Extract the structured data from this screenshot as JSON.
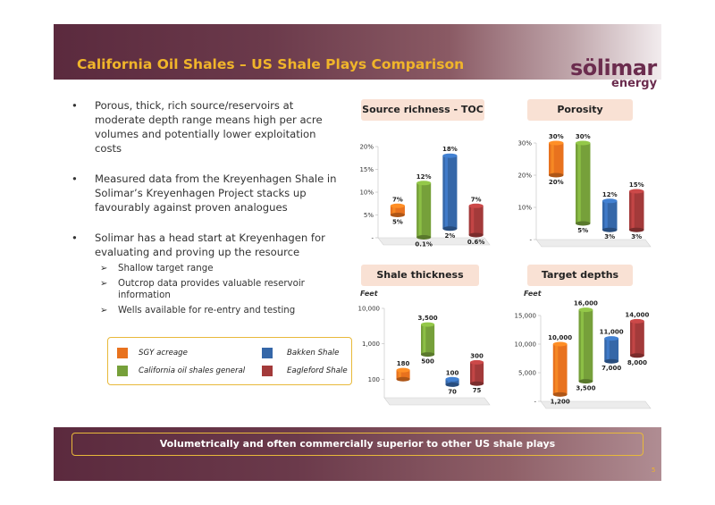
{
  "title": "California Oil Shales – US Shale Plays Comparison",
  "logo": {
    "word1": "sölimar",
    "word2": "energy"
  },
  "bullets": [
    {
      "text": "Porous, thick, rich source/reservoirs at moderate depth range means high per acre volumes and potentially lower exploitation costs"
    },
    {
      "text": "Measured data from the Kreyenhagen Shale in Solimar’s Kreyenhagen Project stacks up favourably against proven analogues"
    },
    {
      "text": "Solimar has a head start at Kreyenhagen for evaluating and proving up the resource",
      "subs": [
        "Shallow target range",
        "Outcrop data provides valuable reservoir information",
        "Wells available for re-entry and testing"
      ]
    }
  ],
  "legend": [
    {
      "label": "SGY acreage",
      "color": "#e8721e"
    },
    {
      "label": "Bakken Shale",
      "color": "#3567a8"
    },
    {
      "label": "California oil shales general",
      "color": "#76a03a"
    },
    {
      "label": "Eagleford Shale",
      "color": "#a33a3a"
    }
  ],
  "footer": "Volumetrically and often commercially superior to other US shale plays",
  "page_number": "5",
  "chart_data": [
    {
      "type": "bar",
      "title": "Source richness - TOC",
      "ylabel": "",
      "ticks": [
        "-",
        "5%",
        "10%",
        "15%",
        "20%"
      ],
      "ylim": [
        0,
        20
      ],
      "series": [
        {
          "name": "SGY acreage",
          "low": 5,
          "high": 7,
          "low_label": "5%",
          "high_label": "7%"
        },
        {
          "name": "California oil shales general",
          "low": 0.1,
          "high": 12,
          "low_label": "0.1%",
          "high_label": "12%"
        },
        {
          "name": "Bakken Shale",
          "low": 2,
          "high": 18,
          "low_label": "2%",
          "high_label": "18%"
        },
        {
          "name": "Eagleford Shale",
          "low": 0.6,
          "high": 7,
          "low_label": "0.6%",
          "high_label": "7%"
        }
      ]
    },
    {
      "type": "bar",
      "title": "Porosity",
      "ylabel": "",
      "ticks": [
        "-",
        "10%",
        "20%",
        "30%"
      ],
      "ylim": [
        0,
        30
      ],
      "series": [
        {
          "name": "SGY acreage",
          "low": 20,
          "high": 30,
          "low_label": "20%",
          "high_label": "30%"
        },
        {
          "name": "California oil shales general",
          "low": 5,
          "high": 30,
          "low_label": "5%",
          "high_label": "30%"
        },
        {
          "name": "Bakken Shale",
          "low": 3,
          "high": 12,
          "low_label": "3%",
          "high_label": "12%"
        },
        {
          "name": "Eagleford Shale",
          "low": 3,
          "high": 15,
          "low_label": "3%",
          "high_label": "15%"
        }
      ]
    },
    {
      "type": "bar",
      "title": "Shale thickness",
      "ylabel": "Feet",
      "scale": "log",
      "ticks": [
        "100",
        "1,000",
        "10,000"
      ],
      "ylim": [
        30,
        10000
      ],
      "series": [
        {
          "name": "SGY acreage",
          "low": 100,
          "high": 180,
          "low_label": "",
          "high_label": "180"
        },
        {
          "name": "California oil shales general",
          "low": 500,
          "high": 3500,
          "low_label": "500",
          "high_label": "3,500"
        },
        {
          "name": "Bakken Shale",
          "low": 70,
          "high": 100,
          "low_label": "70",
          "high_label": "100"
        },
        {
          "name": "Eagleford Shale",
          "low": 75,
          "high": 300,
          "low_label": "75",
          "high_label": "300"
        }
      ]
    },
    {
      "type": "bar",
      "title": "Target depths",
      "ylabel": "Feet",
      "ticks": [
        "-",
        "5,000",
        "10,000",
        "15,000"
      ],
      "ylim": [
        0,
        15000
      ],
      "series": [
        {
          "name": "SGY acreage",
          "low": 1200,
          "high": 10000,
          "low_label": "1,200",
          "high_label": "10,000"
        },
        {
          "name": "California oil shales general",
          "low": 3500,
          "high": 16000,
          "low_label": "3,500",
          "high_label": "16,000"
        },
        {
          "name": "Bakken Shale",
          "low": 7000,
          "high": 11000,
          "low_label": "7,000",
          "high_label": "11,000"
        },
        {
          "name": "Eagleford Shale",
          "low": 8000,
          "high": 14000,
          "low_label": "8,000",
          "high_label": "14,000"
        }
      ]
    }
  ]
}
